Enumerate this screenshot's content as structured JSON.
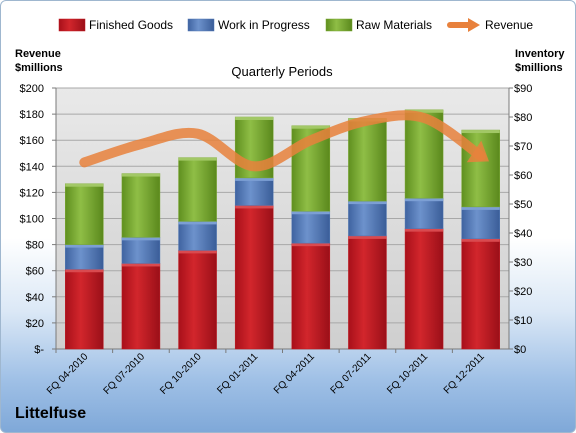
{
  "chart_data": {
    "type": "bar",
    "stacked": true,
    "title": "Quarterly Periods",
    "company": "Littelfuse",
    "y_left_label_1": "Revenue",
    "y_left_label_2": "$millions",
    "y_right_label_1": "Inventory",
    "y_right_label_2": "$millions",
    "y_left_ticks": [
      "$-",
      "$20",
      "$40",
      "$60",
      "$80",
      "$100",
      "$120",
      "$140",
      "$160",
      "$180",
      "$200"
    ],
    "y_right_ticks": [
      "$0",
      "$10",
      "$20",
      "$30",
      "$40",
      "$50",
      "$60",
      "$70",
      "$80",
      "$90"
    ],
    "y_left_lim": [
      0,
      200
    ],
    "y_right_lim": [
      0,
      90
    ],
    "categories": [
      "FQ 04-2010",
      "FQ 07-2010",
      "FQ 10-2010",
      "FQ 01-2011",
      "FQ 04-2011",
      "FQ 07-2011",
      "FQ 10-2011",
      "FQ 12-2011"
    ],
    "series": [
      {
        "name": "Finished Goods",
        "color": "#c0171f",
        "axis": "right",
        "values": [
          27.5,
          29.5,
          34,
          49.5,
          36.5,
          39,
          41.5,
          38
        ]
      },
      {
        "name": "Work in Progress",
        "color": "#4e75b2",
        "axis": "right",
        "values": [
          8.5,
          9,
          10,
          9.5,
          11,
          12,
          10.5,
          11
        ]
      },
      {
        "name": "Raw Materials",
        "color": "#76a42c",
        "axis": "right",
        "values": [
          21,
          22,
          22,
          21,
          29.5,
          28.5,
          30.5,
          26.5
        ]
      },
      {
        "name": "Revenue",
        "color": "#e8813c",
        "axis": "left",
        "type": "line",
        "values": [
          143,
          157,
          165,
          140,
          160,
          175,
          177,
          148
        ]
      }
    ],
    "grid": true,
    "legend_position": "top"
  }
}
